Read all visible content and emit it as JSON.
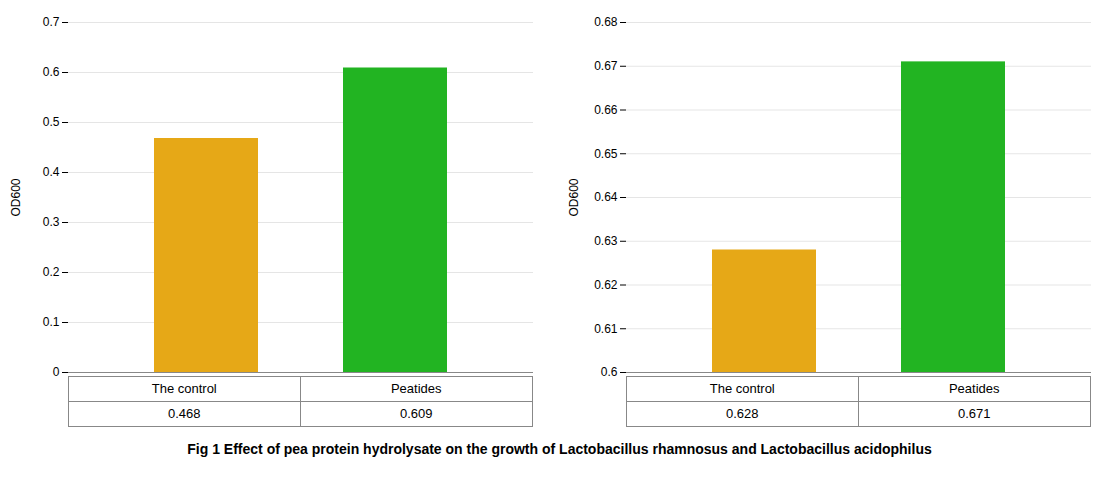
{
  "chart_data": [
    {
      "type": "bar",
      "categories": [
        "The control",
        "Peatides"
      ],
      "values": [
        0.468,
        0.609
      ],
      "colors": [
        "#E6A817",
        "#22B422"
      ],
      "ylim": [
        0,
        0.7
      ],
      "yticks": [
        0,
        0.1,
        0.2,
        0.3,
        0.4,
        0.5,
        0.6,
        0.7
      ],
      "ylabel": "OD600",
      "grid": true,
      "data_labels": true
    },
    {
      "type": "bar",
      "categories": [
        "The control",
        "Peatides"
      ],
      "values": [
        0.628,
        0.671
      ],
      "colors": [
        "#E6A817",
        "#22B422"
      ],
      "ylim": [
        0.6,
        0.68
      ],
      "yticks": [
        0.6,
        0.61,
        0.62,
        0.63,
        0.64,
        0.65,
        0.66,
        0.67,
        0.68
      ],
      "ylabel": "OD600",
      "grid": true,
      "data_labels": true
    }
  ],
  "caption": "Fig 1 Effect of pea protein hydrolysate on the growth of Lactobacillus rhamnosus and Lactobacillus acidophilus"
}
